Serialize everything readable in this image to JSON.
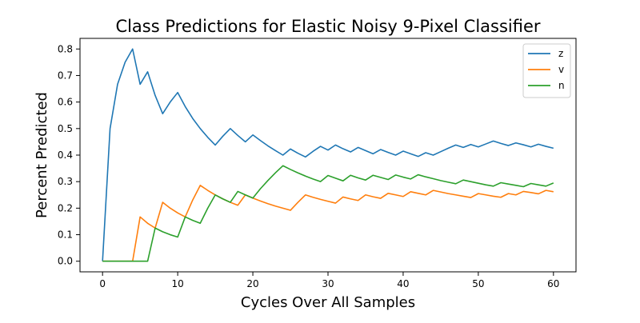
{
  "chart_data": {
    "type": "line",
    "title": "Class Predictions for Elastic Noisy 9-Pixel Classifier",
    "xlabel": "Cycles Over All Samples",
    "ylabel": "Percent Predicted",
    "xlim": [
      -3,
      63
    ],
    "ylim": [
      -0.04,
      0.84
    ],
    "x_ticks": [
      0,
      10,
      20,
      30,
      40,
      50,
      60
    ],
    "y_ticks": [
      0.0,
      0.1,
      0.2,
      0.3,
      0.4,
      0.5,
      0.6,
      0.7,
      0.8
    ],
    "grid": false,
    "legend_position": "top-right",
    "x": [
      0,
      1,
      2,
      3,
      4,
      5,
      6,
      7,
      8,
      9,
      10,
      11,
      12,
      13,
      14,
      15,
      16,
      17,
      18,
      19,
      20,
      21,
      22,
      23,
      24,
      25,
      26,
      27,
      28,
      29,
      30,
      31,
      32,
      33,
      34,
      35,
      36,
      37,
      38,
      39,
      40,
      41,
      42,
      43,
      44,
      45,
      46,
      47,
      48,
      49,
      50,
      51,
      52,
      53,
      54,
      55,
      56,
      57,
      58,
      59,
      60
    ],
    "series": [
      {
        "name": "z",
        "color": "#1f77b4",
        "values": [
          0.0,
          0.5,
          0.667,
          0.75,
          0.8,
          0.667,
          0.714,
          0.625,
          0.556,
          0.6,
          0.636,
          0.583,
          0.538,
          0.5,
          0.467,
          0.438,
          0.471,
          0.5,
          0.474,
          0.45,
          0.476,
          0.455,
          0.435,
          0.417,
          0.4,
          0.423,
          0.407,
          0.393,
          0.414,
          0.433,
          0.419,
          0.438,
          0.424,
          0.412,
          0.429,
          0.417,
          0.405,
          0.421,
          0.41,
          0.4,
          0.415,
          0.405,
          0.395,
          0.409,
          0.4,
          0.413,
          0.426,
          0.438,
          0.429,
          0.44,
          0.431,
          0.442,
          0.453,
          0.444,
          0.436,
          0.446,
          0.439,
          0.431,
          0.441,
          0.433,
          0.426
        ]
      },
      {
        "name": "v",
        "color": "#ff7f0e",
        "values": [
          0.0,
          0.0,
          0.0,
          0.0,
          0.0,
          0.167,
          0.143,
          0.125,
          0.222,
          0.2,
          0.182,
          0.167,
          0.231,
          0.286,
          0.267,
          0.25,
          0.235,
          0.222,
          0.211,
          0.25,
          0.238,
          0.227,
          0.217,
          0.208,
          0.2,
          0.192,
          0.222,
          0.25,
          0.241,
          0.233,
          0.226,
          0.219,
          0.242,
          0.235,
          0.229,
          0.25,
          0.243,
          0.237,
          0.256,
          0.25,
          0.244,
          0.262,
          0.256,
          0.25,
          0.267,
          0.261,
          0.255,
          0.25,
          0.245,
          0.24,
          0.255,
          0.25,
          0.245,
          0.241,
          0.255,
          0.25,
          0.263,
          0.259,
          0.254,
          0.267,
          0.262
        ]
      },
      {
        "name": "n",
        "color": "#2ca02c",
        "values": [
          0.0,
          0.0,
          0.0,
          0.0,
          0.0,
          0.0,
          0.0,
          0.125,
          0.111,
          0.1,
          0.091,
          0.167,
          0.154,
          0.143,
          0.2,
          0.25,
          0.235,
          0.222,
          0.263,
          0.25,
          0.238,
          0.273,
          0.304,
          0.333,
          0.36,
          0.346,
          0.333,
          0.321,
          0.31,
          0.3,
          0.323,
          0.313,
          0.303,
          0.324,
          0.314,
          0.306,
          0.324,
          0.316,
          0.308,
          0.325,
          0.317,
          0.31,
          0.326,
          0.318,
          0.311,
          0.304,
          0.298,
          0.292,
          0.306,
          0.3,
          0.294,
          0.288,
          0.283,
          0.296,
          0.291,
          0.286,
          0.281,
          0.293,
          0.288,
          0.283,
          0.295
        ]
      }
    ]
  }
}
